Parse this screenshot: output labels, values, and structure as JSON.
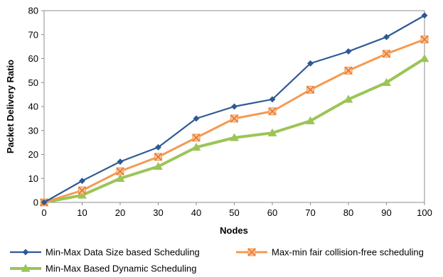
{
  "chart_data": {
    "type": "line",
    "xlabel": "Nodes",
    "ylabel": "Packet Delivery Ratio",
    "x": [
      0,
      10,
      20,
      30,
      40,
      50,
      60,
      70,
      80,
      90,
      100
    ],
    "xlim": [
      0,
      100
    ],
    "ylim": [
      0,
      80
    ],
    "xticks": [
      "0",
      "10",
      "20",
      "30",
      "40",
      "50",
      "60",
      "70",
      "80",
      "90",
      "100"
    ],
    "yticks": [
      "0",
      "10",
      "20",
      "30",
      "40",
      "50",
      "60",
      "70",
      "80"
    ],
    "grid": false,
    "legend_position": "bottom",
    "series": [
      {
        "name": "Min-Max Data Size based Scheduling",
        "values": [
          0,
          9,
          17,
          23,
          35,
          40,
          43,
          58,
          63,
          69,
          78
        ],
        "color": "#2E5A94",
        "marker": "diamond"
      },
      {
        "name": "Max-min fair collision-free scheduling",
        "values": [
          0,
          5,
          13,
          19,
          27,
          35,
          38,
          47,
          55,
          62,
          68
        ],
        "color": "#F59A51",
        "marker": "x-square"
      },
      {
        "name": "Min-Max Based Dynamic Scheduling",
        "values": [
          0,
          3,
          10,
          15,
          23,
          27,
          29,
          34,
          43,
          50,
          60
        ],
        "color": "#9BC556",
        "marker": "triangle"
      }
    ]
  }
}
